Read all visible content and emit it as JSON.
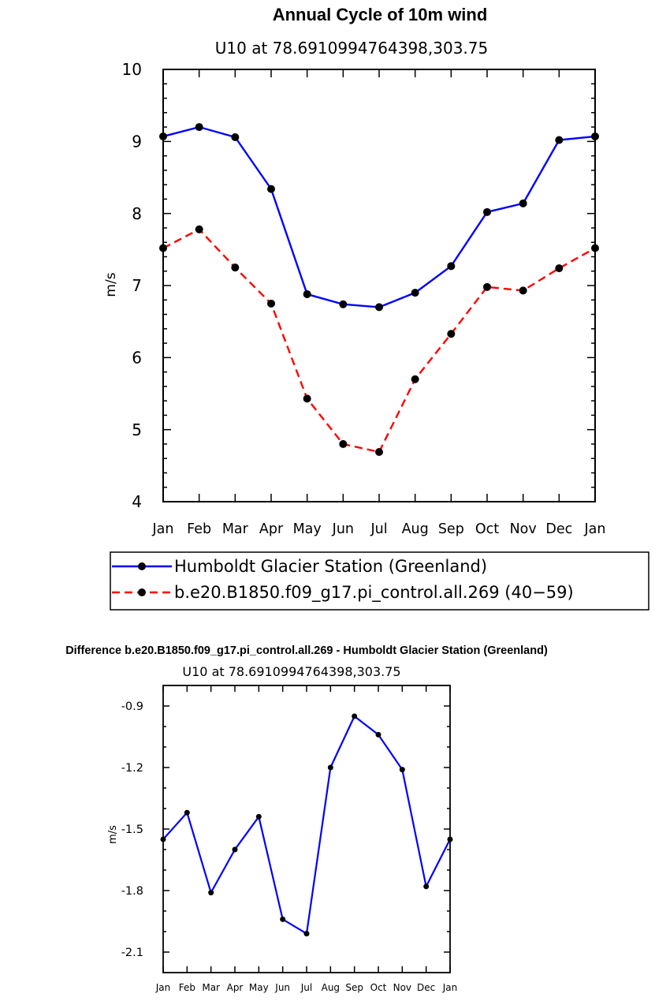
{
  "chart_data": [
    {
      "type": "line",
      "title": "Annual Cycle of 10m wind",
      "subtitle": "U10 at 78.6910994764398,303.75",
      "xlabel": "",
      "ylabel": "m/s",
      "categories": [
        "Jan",
        "Feb",
        "Mar",
        "Apr",
        "May",
        "Jun",
        "Jul",
        "Aug",
        "Sep",
        "Oct",
        "Nov",
        "Dec",
        "Jan"
      ],
      "ylim": [
        4,
        10
      ],
      "yticks": [
        "4",
        "5",
        "6",
        "7",
        "8",
        "9",
        "10"
      ],
      "series": [
        {
          "name": "Humboldt Glacier Station (Greenland)",
          "color": "#0000ff",
          "dash": "solid",
          "values": [
            9.07,
            9.2,
            9.06,
            8.34,
            6.88,
            6.74,
            6.7,
            6.9,
            7.27,
            8.02,
            8.14,
            9.02,
            9.07
          ]
        },
        {
          "name": "b.e20.B1850.f09_g17.pi_control.all.269 (40−59)",
          "color": "#ff0000",
          "dash": "dashed",
          "values": [
            7.52,
            7.78,
            7.25,
            6.75,
            5.43,
            4.8,
            4.69,
            5.7,
            6.33,
            6.98,
            6.93,
            7.24,
            7.52
          ]
        }
      ],
      "legend": "bottom"
    },
    {
      "type": "line",
      "title": "Difference b.e20.B1850.f09_g17.pi_control.all.269 - Humboldt Glacier Station (Greenland)",
      "subtitle": "U10 at 78.6910994764398,303.75",
      "xlabel": "",
      "ylabel": "m/s",
      "categories": [
        "Jan",
        "Feb",
        "Mar",
        "Apr",
        "May",
        "Jun",
        "Jul",
        "Aug",
        "Sep",
        "Oct",
        "Nov",
        "Dec",
        "Jan"
      ],
      "ylim": [
        -2.2,
        -0.8
      ],
      "yticks": [
        "-0.9",
        "-1.2",
        "-1.5",
        "-1.8",
        "-2.1"
      ],
      "series": [
        {
          "name": "Difference",
          "color": "#0000ff",
          "dash": "solid",
          "values": [
            -1.55,
            -1.42,
            -1.81,
            -1.6,
            -1.44,
            -1.94,
            -2.01,
            -1.2,
            -0.95,
            -1.04,
            -1.21,
            -1.78,
            -1.55
          ]
        }
      ]
    }
  ]
}
